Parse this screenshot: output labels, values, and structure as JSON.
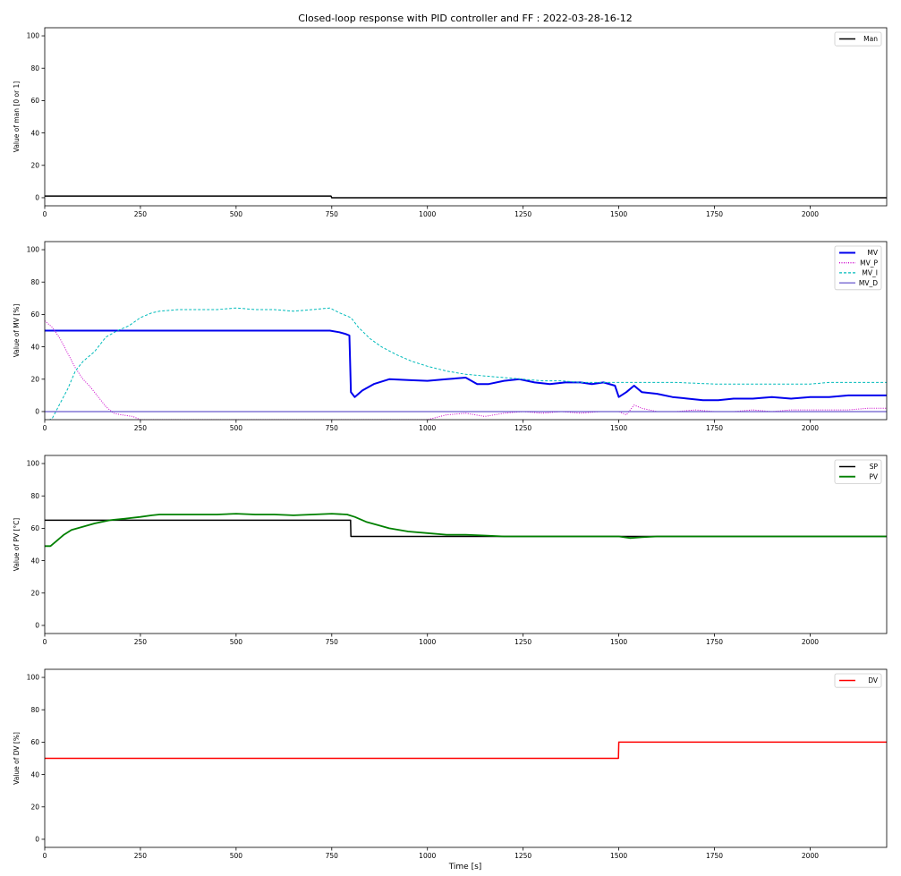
{
  "figure": {
    "title": "Closed-loop response with PID controller and FF : 2022-03-28-16-12"
  },
  "chart_data": [
    {
      "type": "line",
      "ylabel": "Value of man [0 or 1]",
      "xlabel": "",
      "xlim": [
        0,
        2200
      ],
      "ylim": [
        -5,
        105
      ],
      "xticks": [
        0,
        250,
        500,
        750,
        1000,
        1250,
        1500,
        1750,
        2000
      ],
      "yticks": [
        0,
        20,
        40,
        60,
        80,
        100
      ],
      "legend_position": "top-right",
      "grid": false,
      "series": [
        {
          "name": "Man",
          "color": "#000000",
          "width": 1.5,
          "dash": "",
          "points": [
            [
              0,
              1
            ],
            [
              748,
              1
            ],
            [
              750,
              0
            ],
            [
              2200,
              0
            ]
          ]
        }
      ]
    },
    {
      "type": "line",
      "ylabel": "Value of MV [%]",
      "xlabel": "",
      "xlim": [
        0,
        2200
      ],
      "ylim": [
        -5,
        105
      ],
      "xticks": [
        0,
        250,
        500,
        750,
        1000,
        1250,
        1500,
        1750,
        2000
      ],
      "yticks": [
        0,
        20,
        40,
        60,
        80,
        100
      ],
      "legend_position": "top-right",
      "grid": false,
      "series": [
        {
          "name": "MV",
          "color": "#0000ee",
          "width": 2,
          "dash": "",
          "points": [
            [
              0,
              50
            ],
            [
              745,
              50
            ],
            [
              770,
              49
            ],
            [
              785,
              48
            ],
            [
              796,
              47
            ],
            [
              800,
              12
            ],
            [
              810,
              9
            ],
            [
              830,
              13
            ],
            [
              860,
              17
            ],
            [
              900,
              20
            ],
            [
              950,
              19.5
            ],
            [
              1000,
              19
            ],
            [
              1050,
              20
            ],
            [
              1100,
              21
            ],
            [
              1130,
              17
            ],
            [
              1160,
              17
            ],
            [
              1200,
              19
            ],
            [
              1240,
              20
            ],
            [
              1280,
              18
            ],
            [
              1320,
              17
            ],
            [
              1360,
              18
            ],
            [
              1400,
              18
            ],
            [
              1430,
              17
            ],
            [
              1460,
              18
            ],
            [
              1490,
              16
            ],
            [
              1500,
              9
            ],
            [
              1520,
              12
            ],
            [
              1540,
              16
            ],
            [
              1560,
              12
            ],
            [
              1600,
              11
            ],
            [
              1640,
              9
            ],
            [
              1680,
              8
            ],
            [
              1720,
              7
            ],
            [
              1760,
              7
            ],
            [
              1800,
              8
            ],
            [
              1850,
              8
            ],
            [
              1900,
              9
            ],
            [
              1950,
              8
            ],
            [
              2000,
              9
            ],
            [
              2050,
              9
            ],
            [
              2100,
              10
            ],
            [
              2150,
              10
            ],
            [
              2200,
              10
            ]
          ]
        },
        {
          "name": "MV_P",
          "color": "#cc00cc",
          "width": 1,
          "dash": "1,1.5",
          "points": [
            [
              0,
              56
            ],
            [
              20,
              52
            ],
            [
              40,
              45
            ],
            [
              60,
              36
            ],
            [
              80,
              27
            ],
            [
              100,
              20
            ],
            [
              120,
              15
            ],
            [
              140,
              9
            ],
            [
              160,
              3
            ],
            [
              180,
              -1
            ],
            [
              200,
              -2
            ],
            [
              230,
              -3
            ],
            [
              250,
              -5
            ],
            [
              1000,
              -5
            ],
            [
              1050,
              -2
            ],
            [
              1100,
              -1
            ],
            [
              1150,
              -3
            ],
            [
              1200,
              -1
            ],
            [
              1250,
              0
            ],
            [
              1300,
              -1
            ],
            [
              1350,
              0
            ],
            [
              1400,
              -1
            ],
            [
              1450,
              0
            ],
            [
              1500,
              0
            ],
            [
              1520,
              -2
            ],
            [
              1540,
              4
            ],
            [
              1560,
              2
            ],
            [
              1600,
              0
            ],
            [
              1650,
              0
            ],
            [
              1700,
              1
            ],
            [
              1750,
              0
            ],
            [
              1800,
              0
            ],
            [
              1850,
              1
            ],
            [
              1900,
              0
            ],
            [
              1950,
              1
            ],
            [
              2000,
              1
            ],
            [
              2050,
              1
            ],
            [
              2100,
              1
            ],
            [
              2150,
              2
            ],
            [
              2200,
              2
            ]
          ]
        },
        {
          "name": "MV_I",
          "color": "#00bbbb",
          "width": 1,
          "dash": "3,2",
          "points": [
            [
              0,
              -7
            ],
            [
              20,
              -4
            ],
            [
              40,
              5
            ],
            [
              60,
              14
            ],
            [
              80,
              25
            ],
            [
              100,
              31
            ],
            [
              130,
              37
            ],
            [
              160,
              46
            ],
            [
              190,
              50
            ],
            [
              220,
              53
            ],
            [
              250,
              58
            ],
            [
              280,
              61
            ],
            [
              300,
              62
            ],
            [
              350,
              63
            ],
            [
              400,
              63
            ],
            [
              450,
              63
            ],
            [
              500,
              64
            ],
            [
              550,
              63
            ],
            [
              600,
              63
            ],
            [
              650,
              62
            ],
            [
              700,
              63
            ],
            [
              745,
              64
            ],
            [
              770,
              61
            ],
            [
              800,
              58
            ],
            [
              820,
              52
            ],
            [
              850,
              45
            ],
            [
              880,
              40
            ],
            [
              920,
              35
            ],
            [
              960,
              31
            ],
            [
              1000,
              28
            ],
            [
              1050,
              25
            ],
            [
              1100,
              23
            ],
            [
              1150,
              22
            ],
            [
              1200,
              21
            ],
            [
              1250,
              20
            ],
            [
              1300,
              19
            ],
            [
              1350,
              19
            ],
            [
              1400,
              18
            ],
            [
              1450,
              18
            ],
            [
              1500,
              18
            ],
            [
              1550,
              18
            ],
            [
              1600,
              18
            ],
            [
              1650,
              18
            ],
            [
              1700,
              17.5
            ],
            [
              1750,
              17
            ],
            [
              1800,
              17
            ],
            [
              1850,
              17
            ],
            [
              1900,
              17
            ],
            [
              1950,
              17
            ],
            [
              2000,
              17
            ],
            [
              2050,
              18
            ],
            [
              2100,
              18
            ],
            [
              2150,
              18
            ],
            [
              2200,
              18
            ]
          ]
        },
        {
          "name": "MV_D",
          "color": "#6a5acd",
          "width": 1.3,
          "dash": "",
          "points": [
            [
              0,
              0
            ],
            [
              2200,
              0
            ]
          ]
        }
      ]
    },
    {
      "type": "line",
      "ylabel": "Value of PV [°C]",
      "xlabel": "",
      "xlim": [
        0,
        2200
      ],
      "ylim": [
        -5,
        105
      ],
      "xticks": [
        0,
        250,
        500,
        750,
        1000,
        1250,
        1500,
        1750,
        2000
      ],
      "yticks": [
        0,
        20,
        40,
        60,
        80,
        100
      ],
      "legend_position": "top-right",
      "grid": false,
      "series": [
        {
          "name": "SP",
          "color": "#000000",
          "width": 1.5,
          "dash": "",
          "points": [
            [
              0,
              65
            ],
            [
              799,
              65
            ],
            [
              800,
              55
            ],
            [
              2200,
              55
            ]
          ]
        },
        {
          "name": "PV",
          "color": "#008000",
          "width": 1.8,
          "dash": "",
          "points": [
            [
              0,
              49
            ],
            [
              15,
              49
            ],
            [
              30,
              52
            ],
            [
              50,
              56
            ],
            [
              70,
              59
            ],
            [
              100,
              61
            ],
            [
              130,
              63
            ],
            [
              170,
              65
            ],
            [
              210,
              66
            ],
            [
              250,
              67
            ],
            [
              280,
              68
            ],
            [
              300,
              68.5
            ],
            [
              350,
              68.5
            ],
            [
              400,
              68.5
            ],
            [
              450,
              68.5
            ],
            [
              500,
              69
            ],
            [
              550,
              68.5
            ],
            [
              600,
              68.5
            ],
            [
              650,
              68
            ],
            [
              700,
              68.5
            ],
            [
              750,
              69
            ],
            [
              790,
              68.5
            ],
            [
              810,
              67
            ],
            [
              840,
              64
            ],
            [
              870,
              62
            ],
            [
              900,
              60
            ],
            [
              950,
              58
            ],
            [
              1000,
              57
            ],
            [
              1050,
              56
            ],
            [
              1100,
              56
            ],
            [
              1150,
              55.5
            ],
            [
              1200,
              55
            ],
            [
              1250,
              55
            ],
            [
              1300,
              55
            ],
            [
              1350,
              55
            ],
            [
              1400,
              55
            ],
            [
              1450,
              55
            ],
            [
              1500,
              55
            ],
            [
              1530,
              54
            ],
            [
              1560,
              54.5
            ],
            [
              1600,
              55
            ],
            [
              1650,
              55
            ],
            [
              1700,
              55
            ],
            [
              1750,
              55
            ],
            [
              1800,
              55
            ],
            [
              1850,
              55
            ],
            [
              1900,
              55
            ],
            [
              1950,
              55
            ],
            [
              2000,
              55
            ],
            [
              2050,
              55
            ],
            [
              2100,
              55
            ],
            [
              2150,
              55
            ],
            [
              2200,
              55
            ]
          ]
        }
      ]
    },
    {
      "type": "line",
      "ylabel": "Value of DV [%]",
      "xlabel": "Time [s]",
      "xlim": [
        0,
        2200
      ],
      "ylim": [
        -5,
        105
      ],
      "xticks": [
        0,
        250,
        500,
        750,
        1000,
        1250,
        1500,
        1750,
        2000
      ],
      "yticks": [
        0,
        20,
        40,
        60,
        80,
        100
      ],
      "legend_position": "top-right",
      "grid": false,
      "series": [
        {
          "name": "DV",
          "color": "#ff0000",
          "width": 1.5,
          "dash": "",
          "points": [
            [
              0,
              50
            ],
            [
              1499,
              50
            ],
            [
              1500,
              60
            ],
            [
              2200,
              60
            ]
          ]
        }
      ]
    }
  ]
}
